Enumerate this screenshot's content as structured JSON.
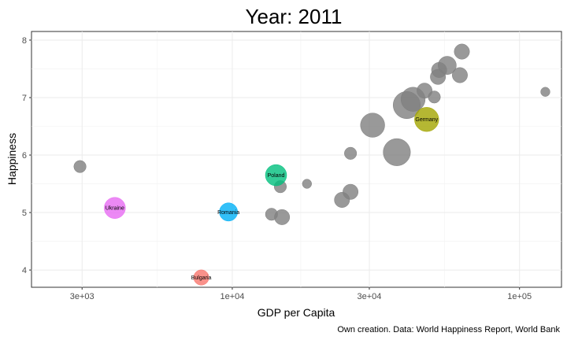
{
  "chart_data": {
    "type": "scatter",
    "title": "Year: 2011",
    "xlabel": "GDP per Capita",
    "ylabel": "Happiness",
    "caption": "Own creation. Data: World Happiness Report, World Bank",
    "x_scale": "log10",
    "xlim": [
      2000,
      140000
    ],
    "ylim": [
      3.7,
      8.15
    ],
    "x_ticks": [
      {
        "value": 3000,
        "label": "3e+03"
      },
      {
        "value": 10000,
        "label": "1e+04"
      },
      {
        "value": 30000,
        "label": "3e+04"
      },
      {
        "value": 100000,
        "label": "1e+05"
      }
    ],
    "y_ticks": [
      {
        "value": 4,
        "label": "4"
      },
      {
        "value": 5,
        "label": "5"
      },
      {
        "value": 6,
        "label": "6"
      },
      {
        "value": 7,
        "label": "7"
      },
      {
        "value": 8,
        "label": "8"
      }
    ],
    "grid": true,
    "legend": "none",
    "colors": {
      "other": "#808080",
      "Ukraine": "#e76bf3",
      "Romania": "#00b0f6",
      "Poland": "#00bf7d",
      "Germany": "#a3a500",
      "Bulgaria": "#f8766d"
    },
    "points": [
      {
        "country": "Ukraine",
        "x": 3900,
        "y": 5.08,
        "size": 5,
        "label": "Ukraine"
      },
      {
        "country": "Romania",
        "x": 9700,
        "y": 5.01,
        "size": 4,
        "label": "Romania"
      },
      {
        "country": "Poland",
        "x": 14200,
        "y": 5.65,
        "size": 5,
        "label": "Poland"
      },
      {
        "country": "Germany",
        "x": 47500,
        "y": 6.62,
        "size": 6,
        "label": "Germany"
      },
      {
        "country": "Bulgaria",
        "x": 7800,
        "y": 3.87,
        "size": 3,
        "label": "Bulgaria"
      },
      {
        "country": "other",
        "x": 2950,
        "y": 5.8,
        "size": 2
      },
      {
        "country": "other",
        "x": 14700,
        "y": 5.45,
        "size": 2
      },
      {
        "country": "other",
        "x": 13700,
        "y": 4.97,
        "size": 2
      },
      {
        "country": "other",
        "x": 14900,
        "y": 4.92,
        "size": 3
      },
      {
        "country": "other",
        "x": 18200,
        "y": 5.5,
        "size": 1
      },
      {
        "country": "other",
        "x": 24100,
        "y": 5.22,
        "size": 3
      },
      {
        "country": "other",
        "x": 25800,
        "y": 5.36,
        "size": 3
      },
      {
        "country": "other",
        "x": 25800,
        "y": 6.03,
        "size": 2
      },
      {
        "country": "other",
        "x": 30800,
        "y": 6.52,
        "size": 6
      },
      {
        "country": "other",
        "x": 37400,
        "y": 6.05,
        "size": 7
      },
      {
        "country": "other",
        "x": 40500,
        "y": 6.87,
        "size": 7
      },
      {
        "country": "other",
        "x": 42600,
        "y": 6.97,
        "size": 6
      },
      {
        "country": "other",
        "x": 46700,
        "y": 7.12,
        "size": 3
      },
      {
        "country": "other",
        "x": 50500,
        "y": 7.01,
        "size": 2
      },
      {
        "country": "other",
        "x": 52000,
        "y": 7.36,
        "size": 3
      },
      {
        "country": "other",
        "x": 52500,
        "y": 7.48,
        "size": 3
      },
      {
        "country": "other",
        "x": 56000,
        "y": 7.56,
        "size": 4
      },
      {
        "country": "other",
        "x": 62000,
        "y": 7.39,
        "size": 3
      },
      {
        "country": "other",
        "x": 63000,
        "y": 7.8,
        "size": 3
      },
      {
        "country": "other",
        "x": 123000,
        "y": 7.1,
        "size": 1
      }
    ]
  }
}
